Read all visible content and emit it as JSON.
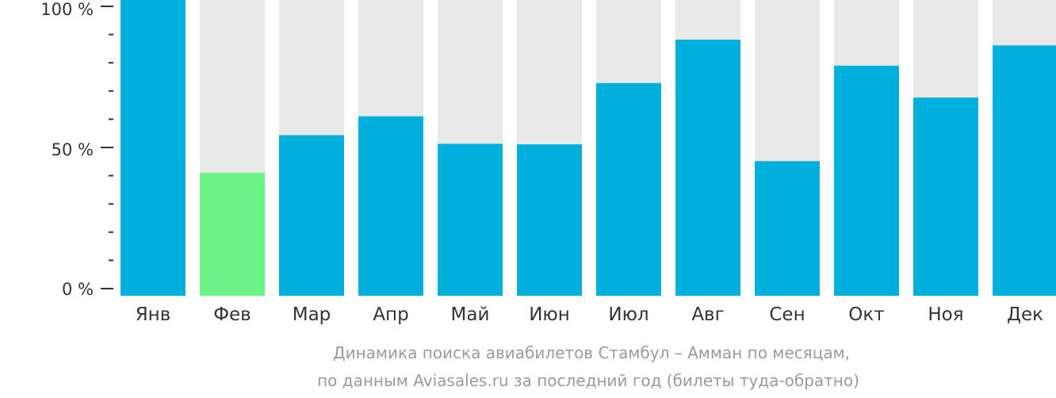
{
  "chart_data": {
    "type": "bar",
    "categories": [
      "Янв",
      "Фев",
      "Мар",
      "Апр",
      "Май",
      "Июн",
      "Июл",
      "Авг",
      "Сен",
      "Окт",
      "Ноя",
      "Дек"
    ],
    "values": [
      100,
      42.5,
      55.5,
      62,
      52.5,
      52.3,
      73.5,
      88.5,
      46.5,
      79.5,
      68.5,
      86.5
    ],
    "ylim": [
      0,
      100
    ],
    "y_ticks": [
      "0 %",
      "50 %",
      "100 %"
    ],
    "highlight_index": 1,
    "caption_lines": [
      "Динамика поиска авиабилетов Стамбул – Амман по месяцам,",
      "по данным Aviasales.ru за последний год (билеты туда-обратно)"
    ],
    "colors": {
      "bar": "#00afdc",
      "highlight": "#6bf387",
      "track": "#e9e9e9",
      "axis": "#333333",
      "caption": "#9a9a9a"
    }
  }
}
